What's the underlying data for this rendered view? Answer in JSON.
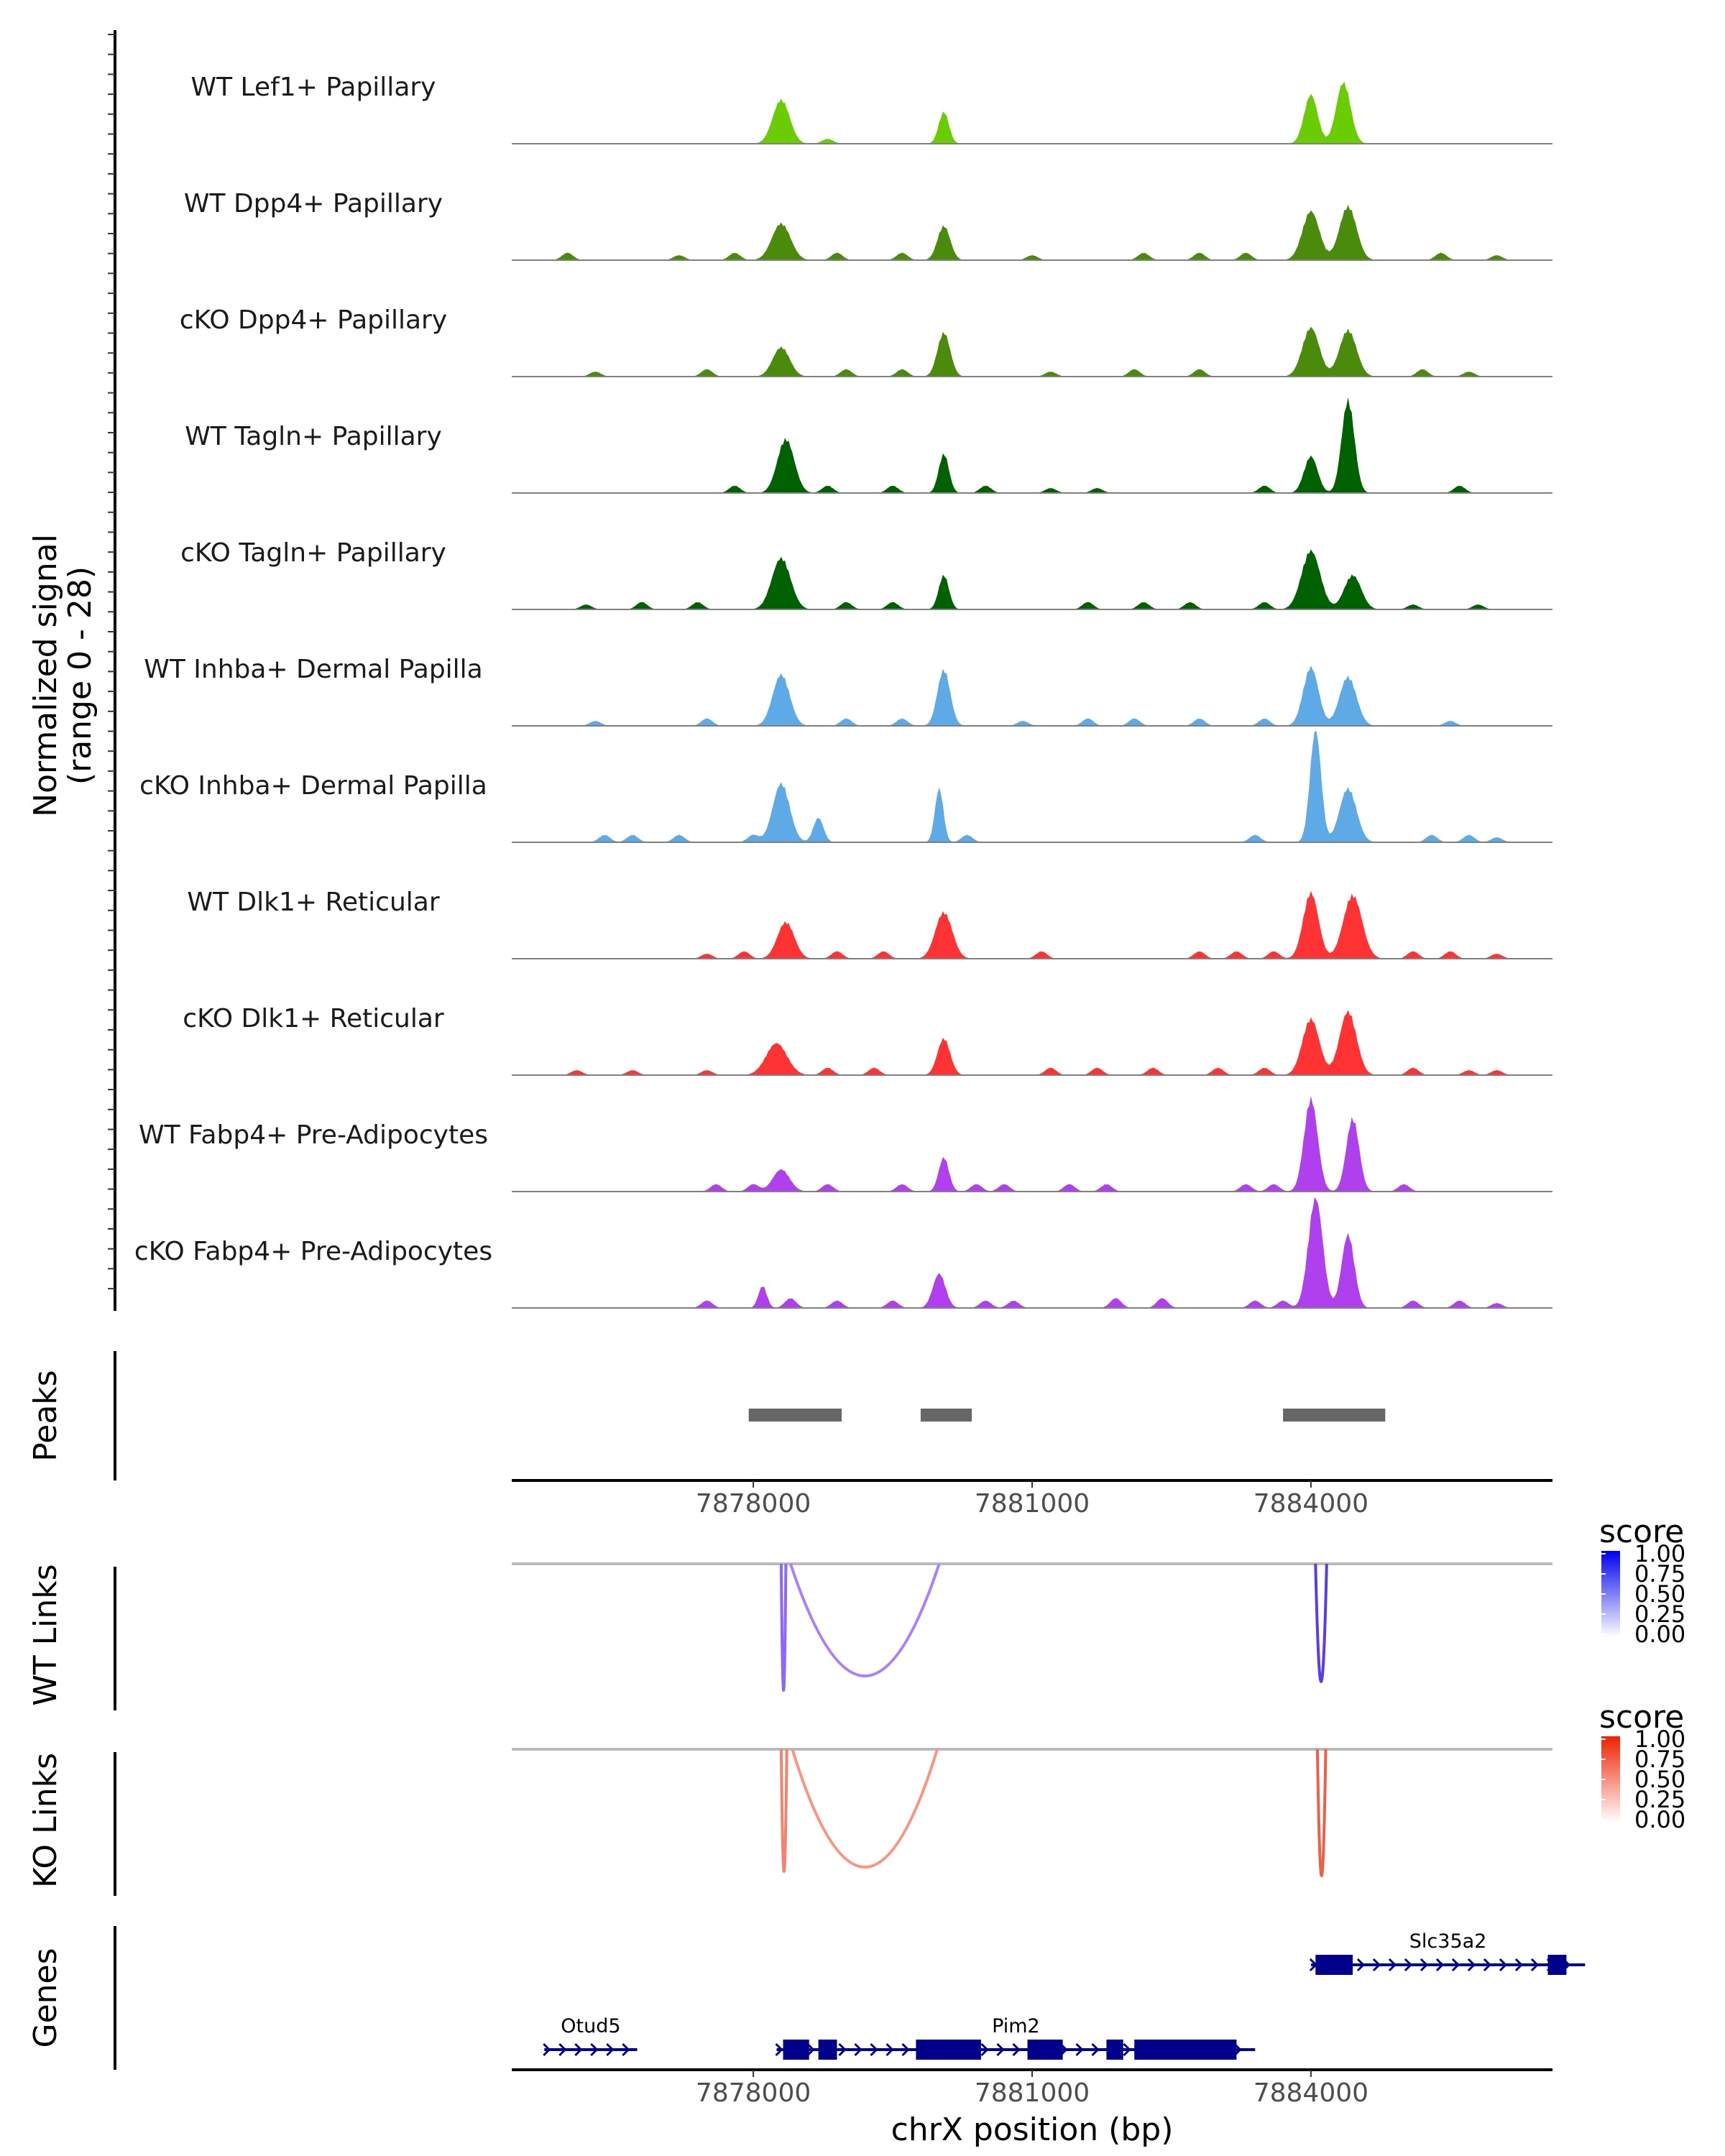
{
  "chart_data": {
    "type": "genome-browser coverage plot",
    "region": {
      "chrom": "chrX",
      "start": 7875400,
      "end": 7886600
    },
    "x_axis": {
      "title": "chrX position (bp)",
      "ticks": [
        7878000,
        7881000,
        7884000
      ],
      "tick_labels": [
        "7878000",
        "7881000",
        "7884000"
      ]
    },
    "coverage": {
      "ylabel_line1": "Normalized signal",
      "ylabel_line2": "(range 0 - 28)",
      "ymax": 28,
      "tracks": [
        {
          "name": "WT Lef1+ Papillary",
          "color": "#6ACD04",
          "peaks": [
            [
              7878300,
              18,
              200
            ],
            [
              7880050,
              13,
              120
            ],
            [
              7884000,
              20,
              160
            ],
            [
              7884350,
              25,
              170
            ]
          ],
          "noise": [
            [
              7878800,
              2
            ]
          ]
        },
        {
          "name": "WT Dpp4+ Papillary",
          "color": "#4A8B0C",
          "peaks": [
            [
              7878300,
              15,
              220
            ],
            [
              7880050,
              14,
              150
            ],
            [
              7884000,
              20,
              200
            ],
            [
              7884400,
              22,
              200
            ]
          ],
          "noise": [
            [
              7876000,
              3
            ],
            [
              7877200,
              2
            ],
            [
              7877800,
              3
            ],
            [
              7878900,
              3
            ],
            [
              7879600,
              3
            ],
            [
              7881000,
              2
            ],
            [
              7882200,
              3
            ],
            [
              7882800,
              3
            ],
            [
              7883300,
              3
            ],
            [
              7885400,
              3
            ],
            [
              7886000,
              2
            ]
          ]
        },
        {
          "name": "cKO Dpp4+ Papillary",
          "color": "#4A8B0C",
          "peaks": [
            [
              7878300,
              12,
              200
            ],
            [
              7880050,
              18,
              150
            ],
            [
              7884000,
              20,
              200
            ],
            [
              7884400,
              19,
              200
            ]
          ],
          "noise": [
            [
              7876300,
              2
            ],
            [
              7877500,
              3
            ],
            [
              7879000,
              3
            ],
            [
              7879600,
              3
            ],
            [
              7881200,
              2
            ],
            [
              7882100,
              3
            ],
            [
              7882800,
              3
            ],
            [
              7885200,
              3
            ],
            [
              7885700,
              2
            ]
          ]
        },
        {
          "name": "WT Tagln+ Papillary",
          "color": "#006100",
          "peaks": [
            [
              7878350,
              22,
              200
            ],
            [
              7880050,
              16,
              120
            ],
            [
              7884000,
              15,
              160
            ],
            [
              7884400,
              38,
              150
            ]
          ],
          "noise": [
            [
              7877800,
              3
            ],
            [
              7878800,
              3
            ],
            [
              7879500,
              3
            ],
            [
              7880500,
              3
            ],
            [
              7881200,
              2
            ],
            [
              7881700,
              2
            ],
            [
              7883500,
              3
            ],
            [
              7885600,
              3
            ]
          ]
        },
        {
          "name": "cKO Tagln+ Papillary",
          "color": "#006100",
          "peaks": [
            [
              7878300,
              21,
              220
            ],
            [
              7880050,
              14,
              120
            ],
            [
              7884000,
              24,
              220
            ],
            [
              7884450,
              14,
              200
            ]
          ],
          "noise": [
            [
              7876200,
              2
            ],
            [
              7876800,
              3
            ],
            [
              7877400,
              3
            ],
            [
              7879000,
              3
            ],
            [
              7879500,
              3
            ],
            [
              7881600,
              3
            ],
            [
              7882200,
              3
            ],
            [
              7882700,
              3
            ],
            [
              7883500,
              3
            ],
            [
              7885100,
              2
            ],
            [
              7885800,
              2
            ]
          ]
        },
        {
          "name": "WT Inhba+ Dermal Papilla",
          "color": "#5DAAE6",
          "peaks": [
            [
              7878300,
              21,
              200
            ],
            [
              7880050,
              23,
              150
            ],
            [
              7884000,
              24,
              180
            ],
            [
              7884400,
              20,
              200
            ]
          ],
          "noise": [
            [
              7876300,
              2
            ],
            [
              7877500,
              3
            ],
            [
              7879000,
              3
            ],
            [
              7879600,
              3
            ],
            [
              7880900,
              2
            ],
            [
              7881600,
              3
            ],
            [
              7882100,
              3
            ],
            [
              7882800,
              3
            ],
            [
              7883500,
              3
            ],
            [
              7885500,
              2
            ]
          ]
        },
        {
          "name": "cKO Inhba+ Dermal Papilla",
          "color": "#5DAAE6",
          "peaks": [
            [
              7878300,
              24,
              200
            ],
            [
              7878700,
              10,
              120
            ],
            [
              7880000,
              22,
              100
            ],
            [
              7884050,
              46,
              130
            ],
            [
              7884400,
              22,
              200
            ]
          ],
          "noise": [
            [
              7876400,
              3
            ],
            [
              7876700,
              3
            ],
            [
              7877200,
              3
            ],
            [
              7878000,
              3
            ],
            [
              7880300,
              3
            ],
            [
              7883400,
              3
            ],
            [
              7885300,
              3
            ],
            [
              7885700,
              3
            ],
            [
              7886000,
              2
            ]
          ]
        },
        {
          "name": "WT Dlk1+ Reticular",
          "color": "#FF3333",
          "peaks": [
            [
              7878350,
              15,
              200
            ],
            [
              7880050,
              19,
              200
            ],
            [
              7884000,
              27,
              180
            ],
            [
              7884450,
              26,
              220
            ]
          ],
          "noise": [
            [
              7877500,
              2
            ],
            [
              7877900,
              3
            ],
            [
              7878900,
              3
            ],
            [
              7879400,
              3
            ],
            [
              7881100,
              3
            ],
            [
              7882800,
              3
            ],
            [
              7883200,
              3
            ],
            [
              7883600,
              3
            ],
            [
              7885100,
              3
            ],
            [
              7885500,
              3
            ],
            [
              7886000,
              2
            ]
          ]
        },
        {
          "name": "cKO Dlk1+ Reticular",
          "color": "#FF3333",
          "peaks": [
            [
              7878250,
              13,
              250
            ],
            [
              7880050,
              15,
              150
            ],
            [
              7884000,
              23,
              200
            ],
            [
              7884400,
              26,
              200
            ]
          ],
          "noise": [
            [
              7876100,
              2
            ],
            [
              7876700,
              2
            ],
            [
              7877500,
              2
            ],
            [
              7878800,
              3
            ],
            [
              7879300,
              3
            ],
            [
              7881200,
              3
            ],
            [
              7881700,
              3
            ],
            [
              7882300,
              3
            ],
            [
              7883000,
              3
            ],
            [
              7883500,
              3
            ],
            [
              7885100,
              3
            ],
            [
              7885700,
              2
            ],
            [
              7886000,
              2
            ]
          ]
        },
        {
          "name": "WT Fabp4+ Pre-Adipocytes",
          "color": "#B03FEE",
          "peaks": [
            [
              7878300,
              9,
              200
            ],
            [
              7880050,
              14,
              120
            ],
            [
              7884000,
              38,
              160
            ],
            [
              7884450,
              30,
              150
            ]
          ],
          "noise": [
            [
              7877600,
              3
            ],
            [
              7878000,
              3
            ],
            [
              7878800,
              3
            ],
            [
              7879600,
              3
            ],
            [
              7880400,
              3
            ],
            [
              7880700,
              3
            ],
            [
              7881400,
              3
            ],
            [
              7881800,
              3
            ],
            [
              7883300,
              3
            ],
            [
              7883600,
              3
            ],
            [
              7885000,
              3
            ]
          ]
        },
        {
          "name": "cKO Fabp4+ Pre-Adipocytes",
          "color": "#B03FEE",
          "peaks": [
            [
              7878100,
              9,
              100
            ],
            [
              7880000,
              14,
              150
            ],
            [
              7884050,
              45,
              170
            ],
            [
              7884400,
              30,
              150
            ]
          ],
          "noise": [
            [
              7877500,
              3
            ],
            [
              7878400,
              4
            ],
            [
              7878900,
              3
            ],
            [
              7879500,
              3
            ],
            [
              7880500,
              3
            ],
            [
              7880800,
              3
            ],
            [
              7881900,
              4
            ],
            [
              7882400,
              4
            ],
            [
              7883400,
              3
            ],
            [
              7883700,
              3
            ],
            [
              7885100,
              3
            ],
            [
              7885600,
              3
            ],
            [
              7886000,
              2
            ]
          ]
        }
      ]
    },
    "peaks_track": {
      "label": "Peaks",
      "color": "#666666",
      "regions": [
        [
          7877950,
          7878950
        ],
        [
          7879800,
          7880350
        ],
        [
          7883700,
          7884800
        ]
      ]
    },
    "links": [
      {
        "label": "WT Links",
        "legend_title": "score",
        "legend_ticks": [
          "1.00",
          "0.75",
          "0.50",
          "0.25",
          "0.00"
        ],
        "gradient": [
          "#FFFFFF",
          "#0000EE"
        ],
        "arcs": [
          [
            7878300,
            7878350,
            0.88,
            "#8B66FF"
          ],
          [
            7878400,
            7880000,
            0.78,
            "#AA80FF"
          ],
          [
            7884050,
            7884170,
            0.82,
            "#5A3CE8"
          ]
        ]
      },
      {
        "label": "KO Links",
        "legend_title": "score",
        "legend_ticks": [
          "1.00",
          "0.75",
          "0.50",
          "0.25",
          "0.00"
        ],
        "gradient": [
          "#FFFFFF",
          "#EE2200"
        ],
        "arcs": [
          [
            7878300,
            7878360,
            0.85,
            "#F2846E"
          ],
          [
            7878420,
            7879980,
            0.82,
            "#F99680"
          ],
          [
            7884070,
            7884160,
            0.88,
            "#EC6045"
          ]
        ]
      }
    ],
    "genes": {
      "label": "Genes",
      "color": "#00008B",
      "items": [
        {
          "name": "Slc35a2",
          "row": 0,
          "start": 7884000,
          "end": 7886950,
          "exons": [
            [
              7884050,
              7884450
            ],
            [
              7886550,
              7886750
            ]
          ]
        },
        {
          "name": "Otud5",
          "row": 1,
          "start": 7875750,
          "end": 7876750,
          "exons": []
        },
        {
          "name": "Pim2",
          "row": 1,
          "start": 7878250,
          "end": 7883400,
          "exons": [
            [
              7878320,
              7878600
            ],
            [
              7878700,
              7878900
            ],
            [
              7879750,
              7880450
            ],
            [
              7880950,
              7881330
            ],
            [
              7881800,
              7881980
            ],
            [
              7882100,
              7883200
            ]
          ]
        }
      ]
    }
  }
}
